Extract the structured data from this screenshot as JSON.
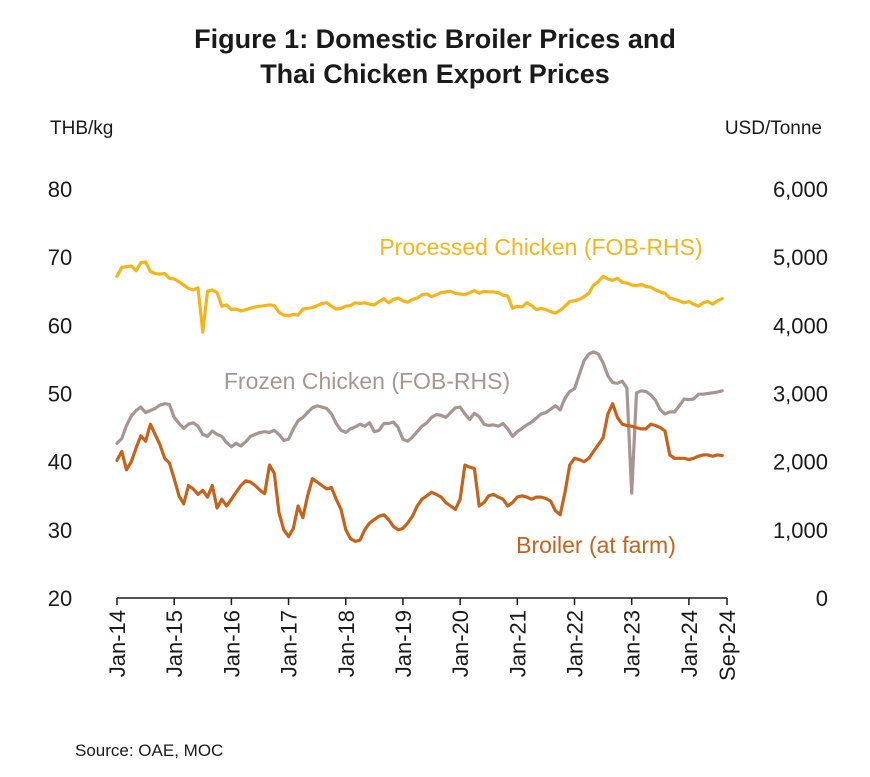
{
  "chart_data": {
    "type": "line",
    "title_line1": "Figure 1: Domestic Broiler Prices and",
    "title_line2": "Thai Chicken Export Prices",
    "y_left_unit": "THB/kg",
    "y_right_unit": "USD/Tonne",
    "y_left_lim": [
      20,
      80
    ],
    "y_left_ticks": [
      "80",
      "70",
      "60",
      "50",
      "40",
      "30",
      "20"
    ],
    "y_right_lim": [
      0,
      6000
    ],
    "y_right_ticks": [
      "6,000",
      "5,000",
      "4,000",
      "3,000",
      "2,000",
      "1,000",
      "0"
    ],
    "x_ticks": [
      "Jan-14",
      "Jan-15",
      "Jan-16",
      "Jan-17",
      "Jan-18",
      "Jan-19",
      "Jan-20",
      "Jan-21",
      "Jan-22",
      "Jan-23",
      "Jan-24",
      "Sep-24"
    ],
    "grid": false,
    "legend": "inline labels",
    "source": "Source: OAE, MOC",
    "series": [
      {
        "name": "Processed Chicken (FOB-RHS)",
        "axis": "right",
        "color": "#F5B51A",
        "x_start": "2014-01",
        "x_end": "2024-09",
        "values": [
          4720,
          4850,
          4860,
          4870,
          4800,
          4920,
          4930,
          4790,
          4760,
          4750,
          4760,
          4690,
          4680,
          4640,
          4590,
          4540,
          4520,
          4550,
          3900,
          4500,
          4520,
          4480,
          4280,
          4300,
          4230,
          4240,
          4210,
          4230,
          4250,
          4270,
          4280,
          4290,
          4300,
          4290,
          4190,
          4150,
          4140,
          4160,
          4150,
          4240,
          4250,
          4260,
          4290,
          4320,
          4330,
          4280,
          4240,
          4250,
          4280,
          4290,
          4330,
          4320,
          4330,
          4310,
          4300,
          4350,
          4390,
          4330,
          4380,
          4400,
          4360,
          4340,
          4380,
          4400,
          4450,
          4460,
          4420,
          4450,
          4480,
          4490,
          4500,
          4470,
          4460,
          4450,
          4480,
          4510,
          4470,
          4500,
          4490,
          4490,
          4480,
          4440,
          4430,
          4250,
          4280,
          4270,
          4330,
          4290,
          4230,
          4250,
          4230,
          4200,
          4180,
          4220,
          4280,
          4350,
          4360,
          4380,
          4420,
          4470,
          4590,
          4640,
          4720,
          4680,
          4660,
          4690,
          4630,
          4620,
          4590,
          4580,
          4600,
          4570,
          4560,
          4520,
          4490,
          4470,
          4400,
          4380,
          4360,
          4330,
          4350,
          4310,
          4280,
          4330,
          4350,
          4310,
          4360,
          4390
        ]
      },
      {
        "name": "Frozen Chicken (FOB-RHS)",
        "axis": "right",
        "color": "#A89592",
        "x_start": "2014-01",
        "x_end": "2024-09",
        "values": [
          2270,
          2340,
          2530,
          2670,
          2750,
          2800,
          2720,
          2750,
          2780,
          2830,
          2850,
          2840,
          2650,
          2560,
          2490,
          2550,
          2570,
          2520,
          2400,
          2370,
          2450,
          2400,
          2370,
          2280,
          2220,
          2270,
          2230,
          2290,
          2370,
          2400,
          2430,
          2440,
          2430,
          2460,
          2400,
          2310,
          2330,
          2480,
          2600,
          2650,
          2720,
          2790,
          2820,
          2800,
          2780,
          2700,
          2560,
          2460,
          2430,
          2480,
          2510,
          2550,
          2520,
          2570,
          2440,
          2460,
          2560,
          2560,
          2580,
          2500,
          2330,
          2300,
          2360,
          2440,
          2520,
          2570,
          2650,
          2690,
          2680,
          2650,
          2720,
          2790,
          2800,
          2700,
          2620,
          2710,
          2660,
          2550,
          2530,
          2540,
          2520,
          2560,
          2480,
          2370,
          2440,
          2490,
          2540,
          2580,
          2640,
          2700,
          2720,
          2770,
          2820,
          2760,
          2930,
          3030,
          3070,
          3280,
          3480,
          3580,
          3610,
          3580,
          3450,
          3260,
          3160,
          3150,
          3180,
          3080,
          1540,
          3010,
          3040,
          3030,
          2980,
          2900,
          2760,
          2700,
          2730,
          2730,
          2820,
          2920,
          2910,
          2920,
          2990,
          2990,
          3000,
          3010,
          3020,
          3040
        ]
      },
      {
        "name": "Broiler (at farm)",
        "axis": "left",
        "color": "#C8621B",
        "x_start": "2014-01",
        "x_end": "2024-09",
        "values": [
          40.2,
          41.5,
          38.8,
          40.0,
          42.0,
          43.8,
          43.0,
          45.5,
          44.0,
          42.5,
          40.5,
          39.8,
          37.5,
          35.0,
          33.8,
          36.5,
          36.0,
          35.2,
          35.8,
          34.8,
          36.5,
          33.2,
          34.5,
          33.5,
          34.5,
          35.5,
          36.5,
          37.2,
          37.0,
          36.5,
          35.8,
          35.3,
          39.5,
          38.3,
          32.5,
          30.0,
          29.0,
          30.2,
          33.5,
          31.8,
          35.0,
          37.5,
          37.0,
          36.5,
          36.0,
          36.2,
          34.5,
          33.0,
          30.0,
          28.7,
          28.3,
          28.5,
          30.0,
          31.0,
          31.5,
          32.0,
          32.2,
          31.5,
          30.5,
          30.0,
          30.2,
          31.0,
          32.0,
          33.5,
          34.5,
          35.0,
          35.5,
          35.2,
          34.8,
          34.0,
          33.5,
          33.0,
          34.5,
          39.5,
          39.2,
          39.0,
          33.5,
          34.0,
          35.0,
          35.2,
          34.8,
          34.5,
          33.5,
          34.0,
          34.8,
          35.0,
          34.8,
          34.5,
          34.8,
          34.8,
          34.6,
          34.2,
          32.8,
          32.2,
          35.5,
          39.5,
          40.5,
          40.3,
          40.0,
          40.5,
          41.5,
          42.5,
          43.5,
          47.0,
          48.5,
          46.5,
          45.5,
          45.3,
          45.2,
          45.0,
          44.8,
          44.8,
          45.5,
          45.3,
          45.0,
          44.5,
          41.0,
          40.5,
          40.5,
          40.5,
          40.3,
          40.5,
          40.8,
          41.0,
          41.0,
          40.8,
          41.0,
          40.9
        ]
      }
    ]
  }
}
